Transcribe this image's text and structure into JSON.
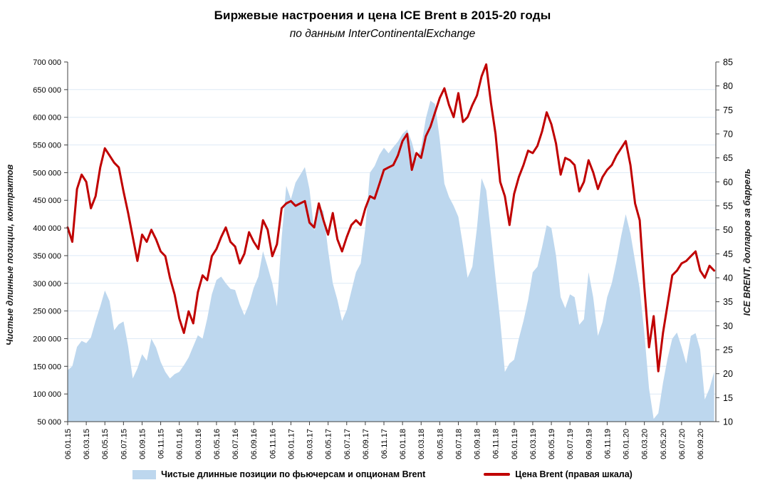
{
  "chart_data": {
    "type": "area+line combo",
    "title": "Биржевые настроения и цена ICE Brent в 2015-20 годы",
    "subtitle": "по данным InterContinentalExchange",
    "grid": true,
    "gridline_color": "#DEEAF6",
    "plot_bg": "#FFFFFF",
    "axis_color": "#404040",
    "x_sampling": "two data points per month, Jan 2015 - Oct 2020",
    "x_ticks_every_n_points": 4,
    "x_tick_labels": [
      "06.01.15",
      "06.03.15",
      "06.05.15",
      "06.07.15",
      "06.09.15",
      "06.11.15",
      "06.01.16",
      "06.03.16",
      "06.05.16",
      "06.07.16",
      "06.09.16",
      "06.11.16",
      "06.01.17",
      "06.03.17",
      "06.05.17",
      "06.07.17",
      "06.09.17",
      "06.11.17",
      "06.01.18",
      "06.03.18",
      "06.05.18",
      "06.07.18",
      "06.09.18",
      "06.11.18",
      "06.01.19",
      "06.03.19",
      "06.05.19",
      "06.07.19",
      "06.09.19",
      "06.11.19",
      "06.01.20",
      "06.03.20",
      "06.05.20",
      "06.07.20",
      "06.09.20"
    ],
    "left_axis": {
      "title": "Чистые длинные позиции, контрактов",
      "min": 50000,
      "max": 700000,
      "step": 50000,
      "tick_labels": [
        "700 000",
        "650 000",
        "600 000",
        "550 000",
        "500 000",
        "450 000",
        "400 000",
        "350 000",
        "300 000",
        "250 000",
        "200 000",
        "150 000",
        "100 000",
        "50 000"
      ]
    },
    "right_axis": {
      "title": "ICE BRENT, долларов за баррель",
      "min": 10,
      "max": 85,
      "step": 5,
      "tick_labels": [
        "85",
        "80",
        "75",
        "70",
        "65",
        "60",
        "55",
        "50",
        "45",
        "40",
        "35",
        "30",
        "25",
        "20",
        "15",
        "10"
      ]
    },
    "series": [
      {
        "name": "Чистые длинные позиции по фьючерсам и опционам Brent",
        "type": "area",
        "axis": "left",
        "color": "#BDD7EE",
        "values": [
          143000,
          150000,
          185000,
          196000,
          192000,
          202000,
          232000,
          258000,
          287000,
          268000,
          215000,
          226000,
          231000,
          186000,
          128000,
          146000,
          172000,
          160000,
          200000,
          184000,
          158000,
          140000,
          128000,
          136000,
          140000,
          152000,
          166000,
          186000,
          206000,
          200000,
          236000,
          280000,
          306000,
          312000,
          300000,
          290000,
          288000,
          262000,
          242000,
          262000,
          292000,
          312000,
          358000,
          330000,
          300000,
          258000,
          382000,
          476000,
          452000,
          482000,
          496000,
          510000,
          470000,
          395000,
          440000,
          430000,
          360000,
          300000,
          270000,
          232000,
          252000,
          286000,
          320000,
          336000,
          400000,
          500000,
          512000,
          532000,
          545000,
          535000,
          546000,
          556000,
          570000,
          578000,
          555000,
          524000,
          545000,
          598000,
          630000,
          624000,
          560000,
          480000,
          456000,
          440000,
          420000,
          368000,
          310000,
          330000,
          400000,
          490000,
          468000,
          390000,
          310000,
          233000,
          140000,
          155000,
          162000,
          200000,
          232000,
          270000,
          320000,
          330000,
          365000,
          405000,
          400000,
          350000,
          275000,
          255000,
          280000,
          275000,
          225000,
          235000,
          320000,
          275000,
          205000,
          230000,
          275000,
          300000,
          340000,
          385000,
          425000,
          390000,
          340000,
          290000,
          210000,
          110000,
          55000,
          65000,
          120000,
          165000,
          200000,
          211000,
          185000,
          155000,
          205000,
          210000,
          180000,
          90000,
          110000,
          140000
        ]
      },
      {
        "name": "Цена Brent (правая шкала)",
        "type": "line",
        "axis": "right",
        "color": "#C00000",
        "values": [
          50.5,
          47.5,
          58.5,
          61.5,
          60.0,
          54.5,
          57.0,
          63.0,
          67.0,
          65.5,
          64.0,
          63.0,
          58.0,
          53.5,
          48.5,
          43.5,
          49.0,
          47.5,
          50.0,
          48.0,
          45.5,
          44.5,
          40.0,
          36.5,
          31.5,
          28.5,
          33.0,
          30.5,
          37.0,
          40.5,
          39.5,
          44.5,
          46.0,
          48.5,
          50.5,
          47.5,
          46.5,
          43.0,
          45.0,
          49.5,
          47.5,
          46.0,
          52.0,
          50.0,
          44.5,
          47.0,
          54.5,
          55.5,
          56.0,
          55.0,
          55.5,
          56.0,
          51.5,
          50.5,
          55.5,
          52.0,
          49.0,
          53.5,
          48.0,
          45.5,
          48.5,
          51.0,
          52.0,
          51.0,
          54.5,
          57.0,
          56.5,
          59.5,
          62.5,
          63.0,
          63.5,
          65.5,
          68.5,
          70.0,
          62.5,
          66.0,
          65.0,
          69.5,
          71.5,
          74.5,
          77.5,
          79.5,
          76.0,
          73.5,
          78.5,
          72.5,
          73.5,
          76.0,
          78.0,
          82.0,
          84.5,
          76.5,
          70.0,
          60.0,
          57.0,
          51.0,
          57.5,
          61.0,
          63.5,
          66.5,
          66.0,
          67.5,
          70.5,
          74.5,
          72.0,
          68.0,
          61.5,
          65.0,
          64.5,
          63.5,
          58.0,
          60.0,
          64.5,
          62.0,
          58.5,
          61.0,
          62.5,
          63.5,
          65.5,
          67.0,
          68.5,
          63.5,
          55.5,
          52.0,
          38.0,
          25.5,
          32.0,
          20.5,
          28.5,
          34.5,
          40.5,
          41.5,
          43.0,
          43.5,
          44.5,
          45.5,
          41.5,
          40.0,
          42.5,
          41.5
        ]
      }
    ]
  },
  "legend": {
    "items": [
      {
        "label": "Чистые длинные позиции по фьючерсам и опционам Brent",
        "swatch_color": "#BDD7EE"
      },
      {
        "label": "Цена Brent (правая шкала)",
        "swatch_color": "#C00000"
      }
    ]
  }
}
